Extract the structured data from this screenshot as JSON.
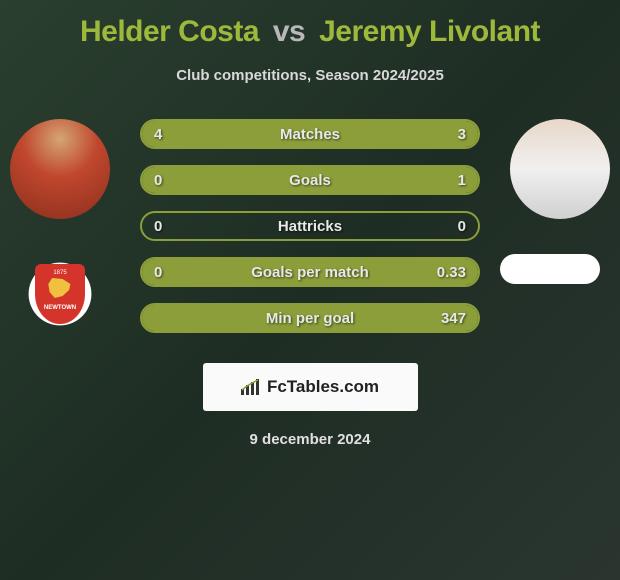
{
  "title": {
    "player1": "Helder Costa",
    "vs": "vs",
    "player2": "Jeremy Livolant"
  },
  "subtitle": "Club competitions, Season 2024/2025",
  "team_left": {
    "year": "1875",
    "name": "NEWTOWN"
  },
  "stats": [
    {
      "label": "Matches",
      "left_value": "4",
      "right_value": "3",
      "left_pct": 57,
      "right_pct": 43,
      "bg_color": "#8b9e3a"
    },
    {
      "label": "Goals",
      "left_value": "0",
      "right_value": "1",
      "left_pct": 0,
      "right_pct": 100,
      "bg_color": "#8b9e3a"
    },
    {
      "label": "Hattricks",
      "left_value": "0",
      "right_value": "0",
      "left_pct": 0,
      "right_pct": 0,
      "bg_color": "transparent"
    },
    {
      "label": "Goals per match",
      "left_value": "0",
      "right_value": "0.33",
      "left_pct": 0,
      "right_pct": 100,
      "bg_color": "#8b9e3a"
    },
    {
      "label": "Min per goal",
      "left_value": "",
      "right_value": "347",
      "left_pct": 0,
      "right_pct": 100,
      "bg_color": "#8b9e3a"
    }
  ],
  "footer": {
    "logo_text": "FcTables.com",
    "date": "9 december 2024"
  },
  "colors": {
    "accent": "#8b9e3a",
    "title": "#9db83a",
    "text_light": "#e8e8e8"
  }
}
